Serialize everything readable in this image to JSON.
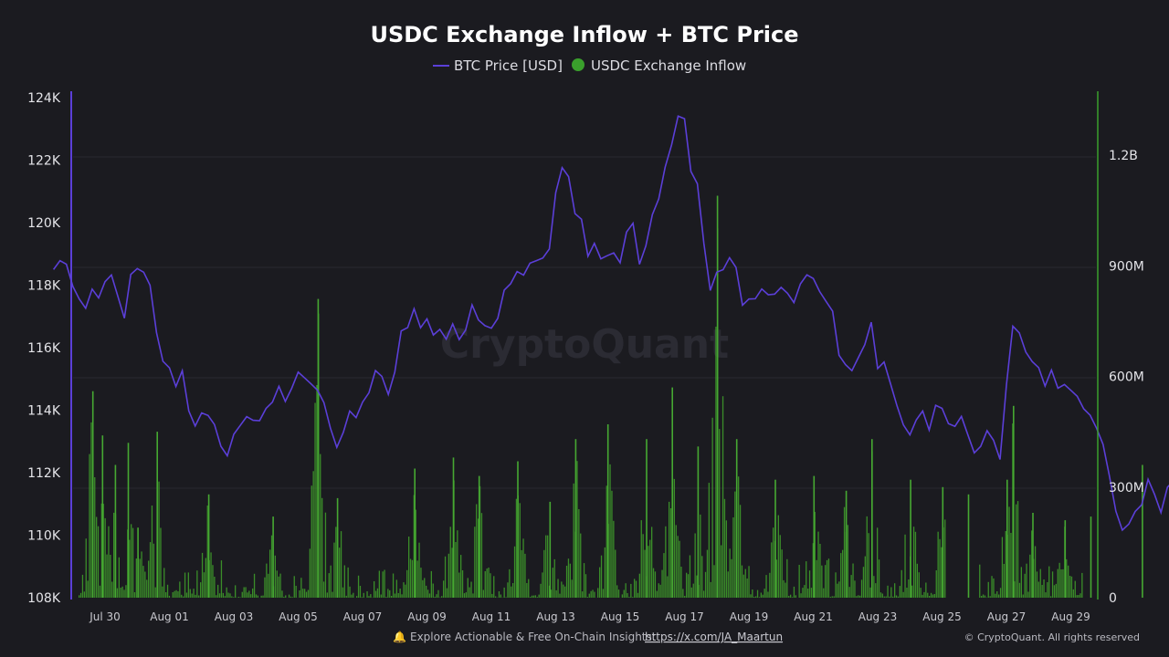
{
  "title": "USDC Exchange Inflow + BTC Price",
  "legend": [
    {
      "label": "BTC Price [USD]",
      "color": "#5b3fd8"
    },
    {
      "label": "USDC Exchange Inflow",
      "color": "#3aa02c"
    }
  ],
  "watermark": "CryptoQuant",
  "footer": {
    "bell_icon": "bell-icon",
    "text": "Explore Actionable & Free On-Chain Insights:",
    "link": "https://x.com/JA_Maartun",
    "copyright": "© CryptoQuant. All rights reserved"
  },
  "chart_data": {
    "type": "line+bar",
    "title": "USDC Exchange Inflow + BTC Price",
    "x_tick_labels": [
      "Jul 30",
      "Aug 01",
      "Aug 03",
      "Aug 05",
      "Aug 07",
      "Aug 09",
      "Aug 11",
      "Aug 13",
      "Aug 15",
      "Aug 17",
      "Aug 19",
      "Aug 21",
      "Aug 23",
      "Aug 25",
      "Aug 27",
      "Aug 29"
    ],
    "x_range_days": [
      -0.8,
      15.9
    ],
    "left_axis": {
      "ticks": [
        "124K",
        "122K",
        "120K",
        "118K",
        "116K",
        "114K",
        "112K",
        "110K",
        "108K"
      ],
      "ylim": [
        108000,
        124000
      ]
    },
    "right_axis": {
      "ticks": [
        "1.2B",
        "900M",
        "600M",
        "300M",
        "0"
      ],
      "ylim": [
        0,
        1200000000
      ]
    },
    "grid": "horizontal",
    "legend_position": "top-center",
    "series": [
      {
        "name": "BTC Price [USD]",
        "kind": "line",
        "axis": "left",
        "color": "#5b3fd8",
        "points": [
          [
            -0.8,
            118500
          ],
          [
            -0.7,
            118800
          ],
          [
            -0.6,
            118700
          ],
          [
            -0.5,
            118000
          ],
          [
            -0.4,
            117600
          ],
          [
            -0.3,
            117300
          ],
          [
            -0.2,
            117900
          ],
          [
            -0.1,
            117600
          ],
          [
            0.0,
            118100
          ],
          [
            0.1,
            118300
          ],
          [
            0.2,
            117600
          ],
          [
            0.3,
            116900
          ],
          [
            0.4,
            118300
          ],
          [
            0.5,
            118500
          ],
          [
            0.6,
            118400
          ],
          [
            0.7,
            118000
          ],
          [
            0.8,
            116500
          ],
          [
            0.9,
            115600
          ],
          [
            1.0,
            115400
          ],
          [
            1.1,
            114800
          ],
          [
            1.2,
            115300
          ],
          [
            1.3,
            114000
          ],
          [
            1.4,
            113500
          ],
          [
            1.5,
            113900
          ],
          [
            1.6,
            113800
          ],
          [
            1.7,
            113500
          ],
          [
            1.8,
            112800
          ],
          [
            1.9,
            112500
          ],
          [
            2.0,
            113200
          ],
          [
            2.1,
            113500
          ],
          [
            2.2,
            113800
          ],
          [
            2.3,
            113700
          ],
          [
            2.4,
            113700
          ],
          [
            2.5,
            114100
          ],
          [
            2.6,
            114300
          ],
          [
            2.7,
            114800
          ],
          [
            2.8,
            114300
          ],
          [
            2.9,
            114700
          ],
          [
            3.0,
            115200
          ],
          [
            3.1,
            115000
          ],
          [
            3.2,
            114800
          ],
          [
            3.3,
            114600
          ],
          [
            3.4,
            114200
          ],
          [
            3.5,
            113400
          ],
          [
            3.6,
            112800
          ],
          [
            3.7,
            113300
          ],
          [
            3.8,
            114000
          ],
          [
            3.9,
            113800
          ],
          [
            4.0,
            114300
          ],
          [
            4.1,
            114600
          ],
          [
            4.2,
            115300
          ],
          [
            4.3,
            115100
          ],
          [
            4.4,
            114500
          ],
          [
            4.5,
            115200
          ],
          [
            4.6,
            116500
          ],
          [
            4.7,
            116600
          ],
          [
            4.8,
            117200
          ],
          [
            4.9,
            116600
          ],
          [
            5.0,
            116900
          ],
          [
            5.1,
            116400
          ],
          [
            5.2,
            116600
          ],
          [
            5.3,
            116300
          ],
          [
            5.4,
            116800
          ],
          [
            5.5,
            116300
          ],
          [
            5.6,
            116600
          ],
          [
            5.7,
            117400
          ],
          [
            5.8,
            116900
          ],
          [
            5.9,
            116700
          ],
          [
            6.0,
            116600
          ],
          [
            6.1,
            116900
          ],
          [
            6.2,
            117800
          ],
          [
            6.3,
            118000
          ],
          [
            6.4,
            118400
          ],
          [
            6.5,
            118300
          ],
          [
            6.6,
            118700
          ],
          [
            6.7,
            118800
          ],
          [
            6.8,
            118900
          ],
          [
            6.9,
            119200
          ],
          [
            7.0,
            121000
          ],
          [
            7.1,
            121800
          ],
          [
            7.2,
            121500
          ],
          [
            7.3,
            120300
          ],
          [
            7.4,
            120100
          ],
          [
            7.5,
            118900
          ],
          [
            7.6,
            119300
          ],
          [
            7.7,
            118800
          ],
          [
            7.8,
            118900
          ],
          [
            7.9,
            119000
          ],
          [
            8.0,
            118700
          ],
          [
            8.1,
            119700
          ],
          [
            8.2,
            120000
          ],
          [
            8.3,
            118700
          ],
          [
            8.4,
            119300
          ],
          [
            8.5,
            120300
          ],
          [
            8.6,
            120800
          ],
          [
            8.7,
            121800
          ],
          [
            8.8,
            122500
          ],
          [
            8.9,
            123400
          ],
          [
            9.0,
            123300
          ],
          [
            9.1,
            121600
          ],
          [
            9.2,
            121200
          ],
          [
            9.3,
            119300
          ],
          [
            9.4,
            117800
          ],
          [
            9.5,
            118400
          ],
          [
            9.6,
            118500
          ],
          [
            9.7,
            118900
          ],
          [
            9.8,
            118600
          ],
          [
            9.9,
            117400
          ],
          [
            10.0,
            117600
          ],
          [
            10.1,
            117600
          ],
          [
            10.2,
            117900
          ],
          [
            10.3,
            117700
          ],
          [
            10.4,
            117700
          ],
          [
            10.5,
            117900
          ],
          [
            10.6,
            117700
          ],
          [
            10.7,
            117400
          ],
          [
            10.8,
            118000
          ],
          [
            10.9,
            118300
          ],
          [
            11.0,
            118200
          ],
          [
            11.1,
            117800
          ],
          [
            11.2,
            117500
          ],
          [
            11.3,
            117200
          ],
          [
            11.4,
            115800
          ],
          [
            11.5,
            115500
          ],
          [
            11.6,
            115300
          ],
          [
            11.7,
            115700
          ],
          [
            11.8,
            116100
          ],
          [
            11.9,
            116800
          ],
          [
            12.0,
            115300
          ],
          [
            12.1,
            115500
          ],
          [
            12.2,
            114800
          ],
          [
            12.3,
            114100
          ],
          [
            12.4,
            113500
          ],
          [
            12.5,
            113200
          ],
          [
            12.6,
            113700
          ],
          [
            12.7,
            114000
          ],
          [
            12.8,
            113400
          ],
          [
            12.9,
            114200
          ],
          [
            13.0,
            114100
          ],
          [
            13.1,
            113600
          ],
          [
            13.2,
            113500
          ],
          [
            13.3,
            113800
          ],
          [
            13.4,
            113200
          ],
          [
            13.5,
            112600
          ],
          [
            13.6,
            112800
          ],
          [
            13.7,
            113300
          ],
          [
            13.8,
            113000
          ],
          [
            13.9,
            112400
          ],
          [
            14.0,
            114800
          ],
          [
            14.1,
            116700
          ],
          [
            14.2,
            116500
          ],
          [
            14.3,
            115900
          ],
          [
            14.4,
            115600
          ],
          [
            14.5,
            115400
          ],
          [
            14.6,
            114800
          ],
          [
            14.7,
            115300
          ],
          [
            14.8,
            114700
          ],
          [
            14.9,
            114800
          ],
          [
            15.0,
            114600
          ],
          [
            15.1,
            114400
          ],
          [
            15.2,
            114000
          ],
          [
            15.3,
            113800
          ],
          [
            15.4,
            113400
          ],
          [
            15.5,
            112900
          ],
          [
            15.6,
            111900
          ],
          [
            15.7,
            110800
          ],
          [
            15.8,
            110200
          ],
          [
            15.9,
            110400
          ],
          [
            16.0,
            110800
          ],
          [
            16.1,
            111000
          ],
          [
            16.2,
            111800
          ],
          [
            16.3,
            111300
          ],
          [
            16.4,
            110700
          ],
          [
            16.5,
            111500
          ],
          [
            16.6,
            111700
          ],
          [
            16.7,
            111200
          ],
          [
            16.8,
            111900
          ],
          [
            16.9,
            112600
          ],
          [
            17.0,
            113100
          ],
          [
            17.1,
            112600
          ],
          [
            17.2,
            113200
          ],
          [
            17.3,
            112600
          ],
          [
            17.4,
            111700
          ],
          [
            17.5,
            112300
          ],
          [
            17.6,
            111600
          ]
        ]
      },
      {
        "name": "USDC Exchange Inflow",
        "kind": "bar",
        "axis": "right",
        "color": "#3aa02c",
        "note": "dense hourly bars; peaks approx.",
        "peaks": [
          [
            -0.2,
            560000000
          ],
          [
            -0.05,
            440000000
          ],
          [
            0.15,
            360000000
          ],
          [
            0.35,
            420000000
          ],
          [
            0.5,
            190000000
          ],
          [
            0.8,
            450000000
          ],
          [
            1.6,
            280000000
          ],
          [
            2.6,
            220000000
          ],
          [
            3.3,
            810000000
          ],
          [
            3.6,
            270000000
          ],
          [
            4.8,
            350000000
          ],
          [
            5.4,
            380000000
          ],
          [
            5.8,
            330000000
          ],
          [
            6.4,
            370000000
          ],
          [
            6.9,
            260000000
          ],
          [
            7.3,
            430000000
          ],
          [
            7.8,
            470000000
          ],
          [
            8.4,
            430000000
          ],
          [
            8.8,
            570000000
          ],
          [
            9.2,
            410000000
          ],
          [
            9.5,
            1090000000
          ],
          [
            9.8,
            430000000
          ],
          [
            10.4,
            320000000
          ],
          [
            11.0,
            330000000
          ],
          [
            11.5,
            290000000
          ],
          [
            11.9,
            430000000
          ],
          [
            12.5,
            320000000
          ],
          [
            13.0,
            300000000
          ],
          [
            13.4,
            280000000
          ],
          [
            14.0,
            320000000
          ],
          [
            14.1,
            520000000
          ],
          [
            14.4,
            230000000
          ],
          [
            14.9,
            210000000
          ],
          [
            15.3,
            220000000
          ],
          [
            16.1,
            360000000
          ],
          [
            16.6,
            310000000
          ],
          [
            17.0,
            180000000
          ],
          [
            17.3,
            300000000
          ],
          [
            17.4,
            1300000000
          ],
          [
            17.5,
            1160000000
          ],
          [
            17.55,
            870000000
          ]
        ]
      }
    ]
  }
}
